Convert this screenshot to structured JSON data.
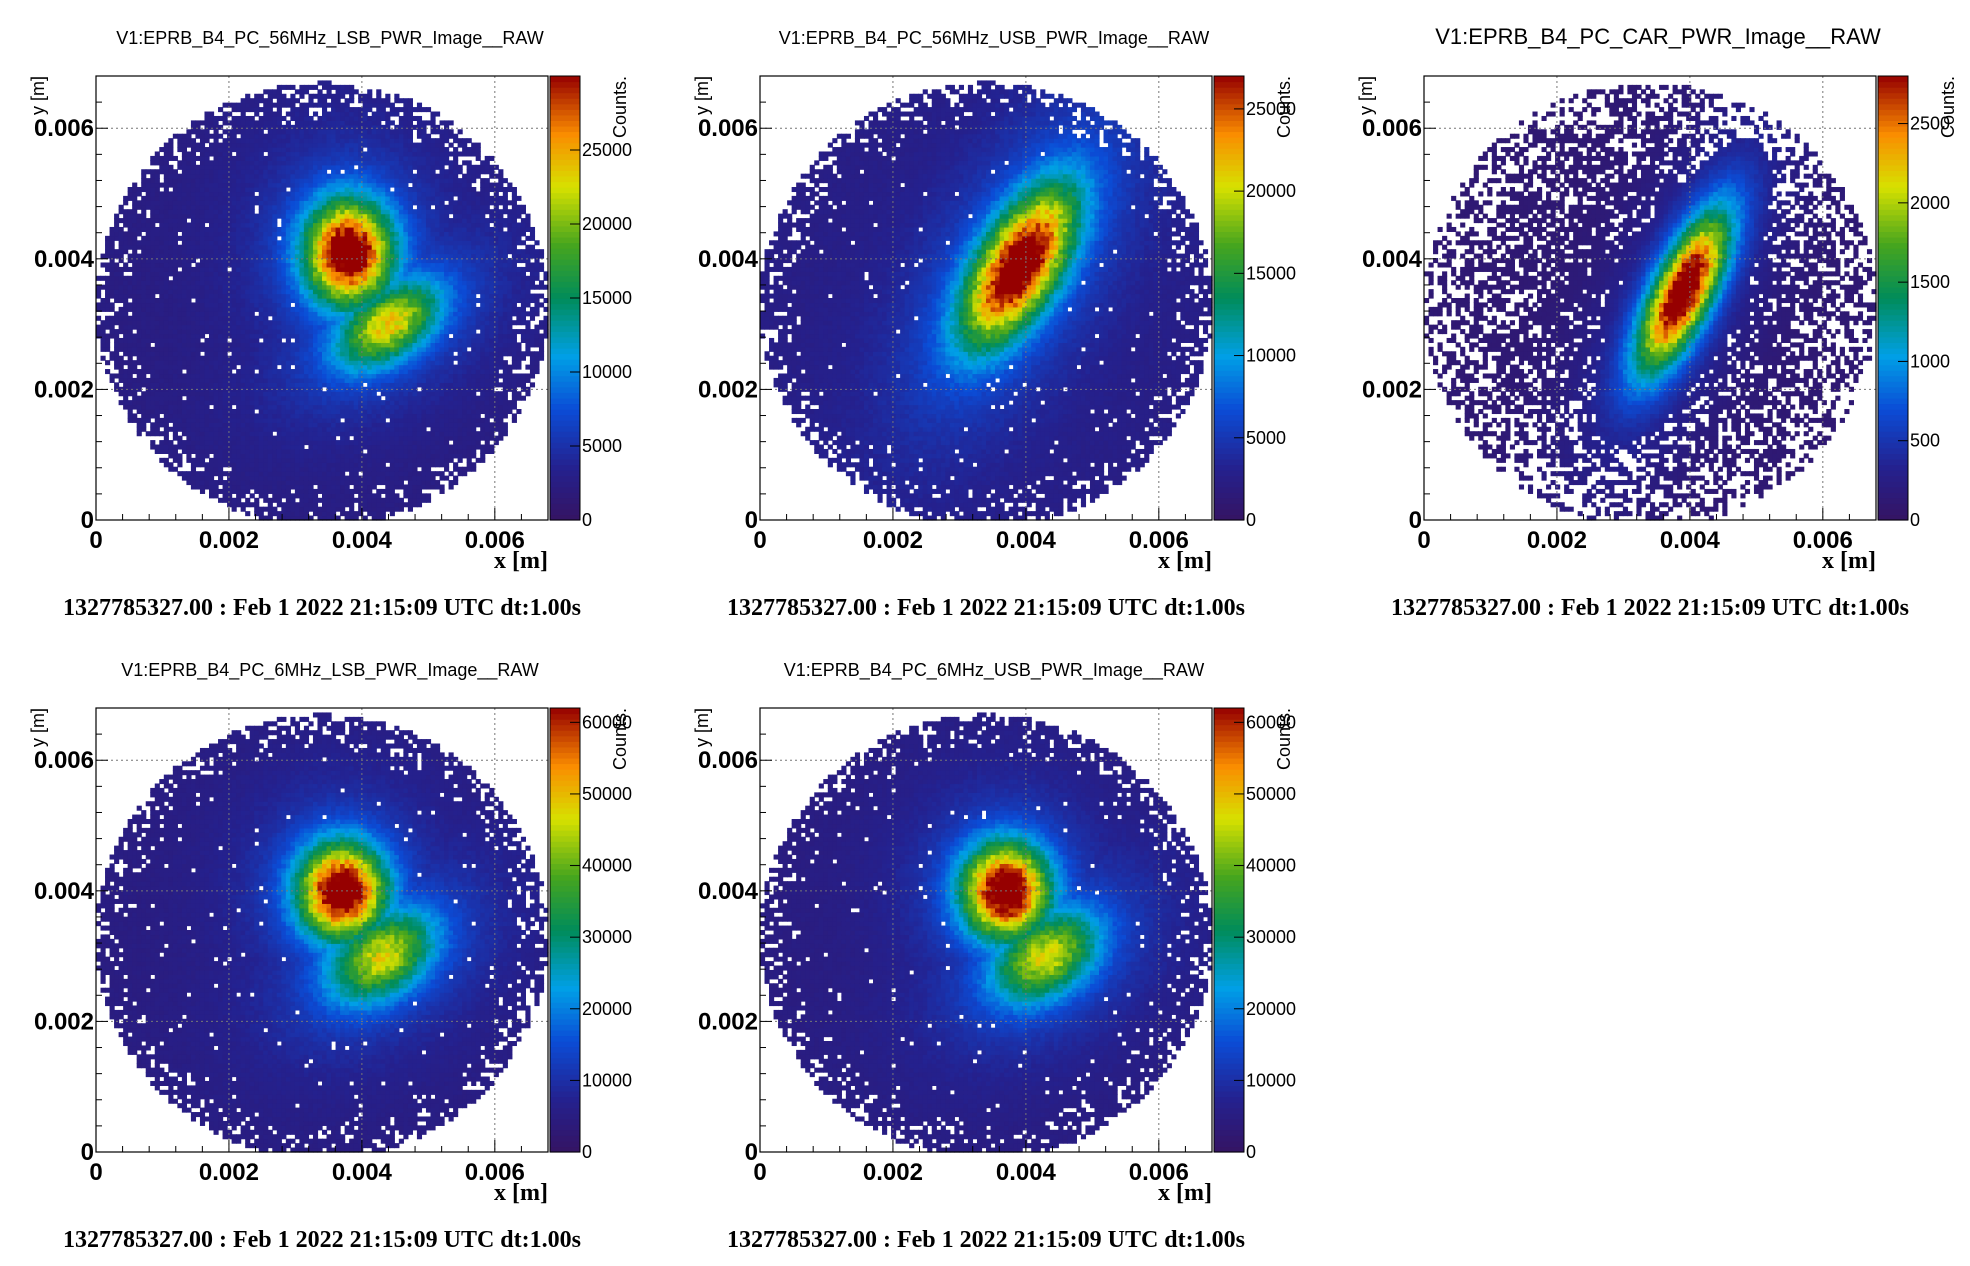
{
  "chart_data": [
    {
      "type": "heatmap",
      "title": "V1:EPRB_B4_PC_56MHz_LSB_PWR_Image__RAW",
      "xlabel": "x [m]",
      "ylabel": "y [m]",
      "zlabel": "Counts.",
      "xlim": [
        0,
        0.0068
      ],
      "ylim": [
        0,
        0.0068
      ],
      "x_ticks": [
        "0",
        "0.002",
        "0.004",
        "0.006"
      ],
      "y_ticks": [
        "0",
        "0.002",
        "0.004",
        "0.006"
      ],
      "z_ticks": [
        "0",
        "5000",
        "10000",
        "15000",
        "20000",
        "25000"
      ],
      "zlim": [
        0,
        30000
      ],
      "grid": true,
      "aperture": {
        "center": [
          0.0034,
          0.0033
        ],
        "radius": 0.0034
      },
      "blob": {
        "peak": 30000,
        "floor": 2500,
        "lobes": [
          {
            "x": 0.0038,
            "y": 0.0041,
            "sx": 0.00045,
            "sy": 0.00055,
            "amp": 1.0,
            "rot": 0
          },
          {
            "x": 0.0044,
            "y": 0.003,
            "sx": 0.0006,
            "sy": 0.00035,
            "amp": 0.62,
            "rot": -35
          }
        ],
        "halo": 0.45
      },
      "footer": "1327785327.00 : Feb  1 2022 21:15:09 UTC dt:1.00s"
    },
    {
      "type": "heatmap",
      "title": "V1:EPRB_B4_PC_56MHz_USB_PWR_Image__RAW",
      "xlabel": "x [m]",
      "ylabel": "y [m]",
      "zlabel": "Counts.",
      "xlim": [
        0,
        0.0068
      ],
      "ylim": [
        0,
        0.0068
      ],
      "x_ticks": [
        "0",
        "0.002",
        "0.004",
        "0.006"
      ],
      "y_ticks": [
        "0",
        "0.002",
        "0.004",
        "0.006"
      ],
      "z_ticks": [
        "0",
        "5000",
        "10000",
        "15000",
        "20000",
        "25000"
      ],
      "zlim": [
        0,
        27000
      ],
      "grid": true,
      "aperture": {
        "center": [
          0.0034,
          0.0033
        ],
        "radius": 0.0034
      },
      "blob": {
        "peak": 27000,
        "floor": 2500,
        "lobes": [
          {
            "x": 0.0039,
            "y": 0.0039,
            "sx": 0.0004,
            "sy": 0.0009,
            "amp": 1.0,
            "rot": 30
          }
        ],
        "halo": 0.5
      },
      "footer": "1327785327.00 : Feb  1 2022 21:15:09 UTC dt:1.00s"
    },
    {
      "type": "heatmap",
      "title": "V1:EPRB_B4_PC_CAR_PWR_Image__RAW",
      "xlabel": "x [m]",
      "ylabel": "y [m]",
      "zlabel": "Counts.",
      "xlim": [
        0,
        0.0068
      ],
      "ylim": [
        0,
        0.0068
      ],
      "x_ticks": [
        "0",
        "0.002",
        "0.004",
        "0.006"
      ],
      "y_ticks": [
        "0",
        "0.002",
        "0.004",
        "0.006"
      ],
      "z_ticks": [
        "0",
        "500",
        "1000",
        "1500",
        "2000",
        "2500"
      ],
      "zlim": [
        0,
        2800
      ],
      "grid": true,
      "aperture": {
        "center": [
          0.0034,
          0.0033
        ],
        "radius": 0.0034
      },
      "blob": {
        "peak": 2800,
        "floor": 120,
        "lobes": [
          {
            "x": 0.0039,
            "y": 0.0035,
            "sx": 0.0003,
            "sy": 0.0009,
            "amp": 1.0,
            "rot": 25
          }
        ],
        "halo": 0.4,
        "sparse": true
      },
      "footer": "1327785327.00 : Feb  1 2022 21:15:09 UTC dt:1.00s"
    },
    {
      "type": "heatmap",
      "title": "V1:EPRB_B4_PC_6MHz_LSB_PWR_Image__RAW",
      "xlabel": "x [m]",
      "ylabel": "y [m]",
      "zlabel": "Counts.",
      "xlim": [
        0,
        0.0068
      ],
      "ylim": [
        0,
        0.0068
      ],
      "x_ticks": [
        "0",
        "0.002",
        "0.004",
        "0.006"
      ],
      "y_ticks": [
        "0",
        "0.002",
        "0.004",
        "0.006"
      ],
      "z_ticks": [
        "0",
        "10000",
        "20000",
        "30000",
        "40000",
        "50000",
        "60000"
      ],
      "zlim": [
        0,
        62000
      ],
      "grid": true,
      "aperture": {
        "center": [
          0.0034,
          0.0033
        ],
        "radius": 0.0034
      },
      "blob": {
        "peak": 62000,
        "floor": 5000,
        "lobes": [
          {
            "x": 0.0037,
            "y": 0.004,
            "sx": 0.00045,
            "sy": 0.0005,
            "amp": 1.0,
            "rot": 0
          },
          {
            "x": 0.0043,
            "y": 0.003,
            "sx": 0.0006,
            "sy": 0.0004,
            "amp": 0.58,
            "rot": -35
          }
        ],
        "halo": 0.45
      },
      "footer": "1327785327.00 : Feb  1 2022 21:15:09 UTC dt:1.00s"
    },
    {
      "type": "heatmap",
      "title": "V1:EPRB_B4_PC_6MHz_USB_PWR_Image__RAW",
      "xlabel": "x [m]",
      "ylabel": "y [m]",
      "zlabel": "Counts.",
      "xlim": [
        0,
        0.0068
      ],
      "ylim": [
        0,
        0.0068
      ],
      "x_ticks": [
        "0",
        "0.002",
        "0.004",
        "0.006"
      ],
      "y_ticks": [
        "0",
        "0.002",
        "0.004",
        "0.006"
      ],
      "z_ticks": [
        "0",
        "10000",
        "20000",
        "30000",
        "40000",
        "50000",
        "60000"
      ],
      "zlim": [
        0,
        62000
      ],
      "grid": true,
      "aperture": {
        "center": [
          0.0034,
          0.0033
        ],
        "radius": 0.0034
      },
      "blob": {
        "peak": 62000,
        "floor": 5000,
        "lobes": [
          {
            "x": 0.0037,
            "y": 0.004,
            "sx": 0.00045,
            "sy": 0.0005,
            "amp": 1.0,
            "rot": 0
          },
          {
            "x": 0.0043,
            "y": 0.003,
            "sx": 0.0006,
            "sy": 0.0004,
            "amp": 0.58,
            "rot": -35
          }
        ],
        "halo": 0.45
      },
      "footer": "1327785327.00 : Feb  1 2022 21:15:09 UTC dt:1.00s"
    }
  ]
}
